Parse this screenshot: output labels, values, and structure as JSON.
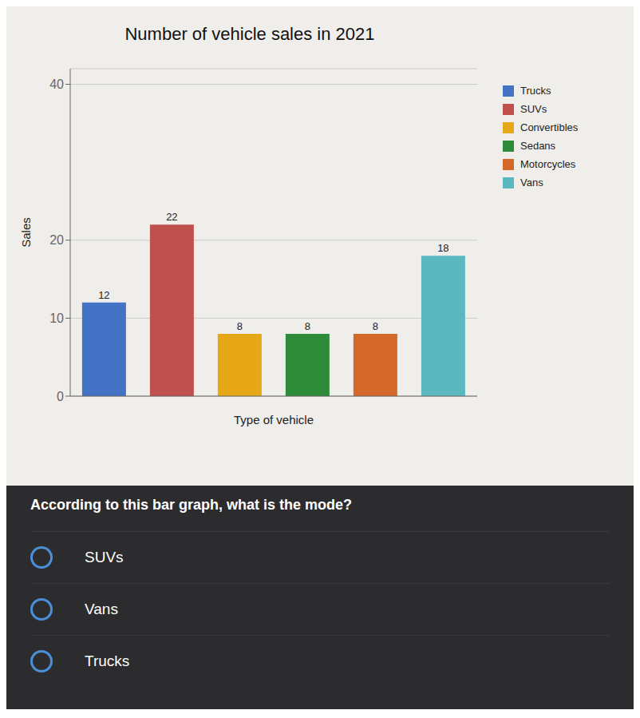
{
  "chart_data": {
    "type": "bar",
    "title": "Number of vehicle sales in 2021",
    "xlabel": "Type of vehicle",
    "ylabel": "Sales",
    "categories": [
      "Trucks",
      "SUVs",
      "Convertibles",
      "Sedans",
      "Motorcycles",
      "Vans"
    ],
    "values": [
      12,
      22,
      8,
      8,
      8,
      18
    ],
    "colors": [
      "#4472C4",
      "#C0504D",
      "#E6A817",
      "#2E8B3A",
      "#D4682A",
      "#5BB8C1"
    ],
    "ylim": [
      0,
      42
    ],
    "yticks": [
      0,
      10,
      20,
      40
    ],
    "grid": true,
    "legend": "right",
    "data_labels": true,
    "tick_labels": "y",
    "annotations": [
      "According to this bar graph, what is the mode?",
      "SUVs",
      "Vans",
      "Trucks"
    ]
  }
}
